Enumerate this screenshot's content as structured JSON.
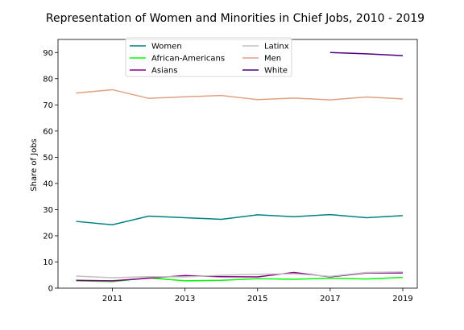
{
  "chart_data": {
    "type": "line",
    "title": "Representation of Women and Minorities in Chief Jobs, 2010 - 2019",
    "xlabel": "",
    "ylabel": "Share of Jobs",
    "xlim": [
      2009.5,
      2019.4
    ],
    "ylim": [
      0,
      95
    ],
    "xticks": [
      2011,
      2013,
      2015,
      2017,
      2019
    ],
    "yticks": [
      0,
      10,
      20,
      30,
      40,
      50,
      60,
      70,
      80,
      90
    ],
    "grid": false,
    "legend_position": "top-center",
    "series": [
      {
        "name": "Women",
        "color": "#008080",
        "x": [
          2010,
          2011,
          2012,
          2013,
          2014,
          2015,
          2016,
          2017,
          2018,
          2019
        ],
        "y": [
          25.5,
          24.2,
          27.5,
          26.9,
          26.3,
          28.0,
          27.3,
          28.1,
          26.9,
          27.7
        ]
      },
      {
        "name": "African-Americans",
        "color": "#00ff00",
        "x": [
          2010,
          2011,
          2012,
          2013,
          2014,
          2015,
          2016,
          2017,
          2018,
          2019
        ],
        "y": [
          2.8,
          2.5,
          3.9,
          2.8,
          3.0,
          3.6,
          3.4,
          3.8,
          3.5,
          4.1
        ]
      },
      {
        "name": "Asians",
        "color": "#8b008b",
        "x": [
          2010,
          2011,
          2012,
          2013,
          2014,
          2015,
          2016,
          2017,
          2018,
          2019
        ],
        "y": [
          3.0,
          2.8,
          3.8,
          4.8,
          4.4,
          4.3,
          6.0,
          4.3,
          5.8,
          5.8
        ]
      },
      {
        "name": "Latinx",
        "color": "#c0c0c0",
        "x": [
          2010,
          2011,
          2012,
          2013,
          2014,
          2015,
          2016,
          2017,
          2018,
          2019
        ],
        "y": [
          4.6,
          4.0,
          4.4,
          4.3,
          4.9,
          5.3,
          5.5,
          4.5,
          6.0,
          6.2
        ]
      },
      {
        "name": "Men",
        "color": "#e0a080",
        "x": [
          2010,
          2011,
          2012,
          2013,
          2014,
          2015,
          2016,
          2017,
          2018,
          2019
        ],
        "y": [
          74.5,
          75.8,
          72.5,
          73.1,
          73.6,
          72.0,
          72.6,
          71.9,
          73.0,
          72.3
        ]
      },
      {
        "name": "White",
        "color": "#4b0082",
        "x": [
          2017,
          2018,
          2019
        ],
        "y": [
          90.0,
          89.5,
          88.8
        ]
      }
    ]
  }
}
